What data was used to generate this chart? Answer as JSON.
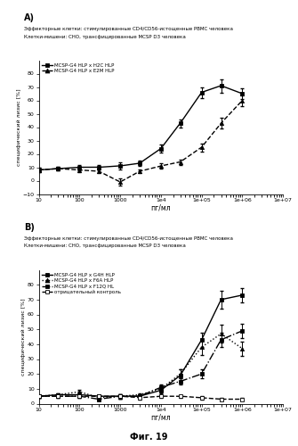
{
  "panel_A": {
    "title_line1": "Эффекторные клетки: стимулированные CD4/CD56-истощенные PBMC человека",
    "title_line2": "Клетки-мишени: СНО, трансфицированные MCSP D3 человека",
    "xlabel": "пг/мл",
    "ylabel": "специфический лизис [%]",
    "ylim": [
      -10,
      90
    ],
    "yticks": [
      -10,
      0,
      10,
      20,
      30,
      40,
      50,
      60,
      70,
      80
    ],
    "xlim_log": [
      10,
      10000000.0
    ],
    "series": [
      {
        "label": "MCSP-G4 HLP x H2C HLP",
        "linestyle": "-",
        "marker": "s",
        "color": "#000000",
        "filled": true,
        "x": [
          10,
          30,
          100,
          300,
          1000,
          3000,
          10000,
          30000,
          100000,
          300000,
          1000000
        ],
        "y": [
          8,
          9,
          10,
          10,
          11,
          13,
          24,
          43,
          66,
          71,
          65
        ],
        "yerr": [
          1.5,
          1.5,
          2,
          1.5,
          2.5,
          2,
          3,
          3,
          4,
          5,
          4
        ]
      },
      {
        "label": "MCSP-G4 HLP x E2M HLP",
        "linestyle": "--",
        "marker": "^",
        "color": "#000000",
        "filled": true,
        "x": [
          10,
          30,
          100,
          300,
          1000,
          3000,
          10000,
          30000,
          100000,
          300000,
          1000000
        ],
        "y": [
          8,
          9,
          8,
          7,
          -1,
          7,
          11,
          14,
          25,
          43,
          60
        ],
        "yerr": [
          1.5,
          1.5,
          1.5,
          1.5,
          2.5,
          1.5,
          2,
          2,
          3,
          4,
          4
        ]
      }
    ]
  },
  "panel_B": {
    "title_line1": "Эффекторные клетки: стимулированные CD4/CD56-истощенные PBMC человека",
    "title_line2": "Клетки-мишени: СНО, трансфицированные MCSP D3 человека",
    "xlabel": "пг/мл",
    "ylabel": "специфический лизис [%]",
    "ylim": [
      0,
      90
    ],
    "yticks": [
      0,
      10,
      20,
      30,
      40,
      50,
      60,
      70,
      80
    ],
    "xlim_log": [
      10,
      10000000.0
    ],
    "series": [
      {
        "label": "MCSP-G4 HLP x G4H HLP",
        "linestyle": "-",
        "marker": "s",
        "color": "#000000",
        "filled": true,
        "x": [
          10,
          30,
          100,
          300,
          1000,
          3000,
          10000,
          30000,
          100000,
          300000,
          1000000
        ],
        "y": [
          5,
          6,
          6,
          5,
          5,
          5,
          9,
          19,
          43,
          70,
          73
        ],
        "yerr": [
          1,
          1,
          1,
          1,
          1.5,
          1,
          2,
          4,
          5,
          6,
          5
        ]
      },
      {
        "label": "MCSP-G4 HLP x F6A HLP",
        "linestyle": ":",
        "marker": "^",
        "color": "#000000",
        "filled": true,
        "x": [
          10,
          30,
          100,
          300,
          1000,
          3000,
          10000,
          30000,
          100000,
          300000,
          1000000
        ],
        "y": [
          5,
          6,
          8,
          4,
          5,
          6,
          10,
          20,
          38,
          47,
          37
        ],
        "yerr": [
          1,
          1,
          1.5,
          1,
          1.5,
          1,
          2,
          3,
          5,
          6,
          5
        ]
      },
      {
        "label": "MCSP-G4 HLP x F12Q HL",
        "linestyle": "-.",
        "marker": "s",
        "color": "#000000",
        "filled": true,
        "x": [
          10,
          30,
          100,
          300,
          1000,
          3000,
          10000,
          30000,
          100000,
          300000,
          1000000
        ],
        "y": [
          5,
          5,
          5,
          3,
          5,
          5,
          11,
          15,
          20,
          43,
          49
        ],
        "yerr": [
          1,
          1,
          1,
          1,
          1.5,
          1,
          2,
          2,
          3,
          5,
          5
        ]
      },
      {
        "label": "отрицательный контроль",
        "linestyle": "--",
        "marker": "s",
        "color": "#000000",
        "filled": false,
        "x": [
          10,
          30,
          100,
          300,
          1000,
          3000,
          10000,
          30000,
          100000,
          300000,
          1000000
        ],
        "y": [
          5,
          5,
          5,
          5,
          5,
          4,
          5,
          5,
          4,
          3,
          3
        ],
        "yerr": [
          1,
          1,
          1,
          1,
          1,
          1,
          1,
          1,
          1,
          1,
          1
        ]
      }
    ]
  },
  "fig_label": "Фиг. 19",
  "panel_label_A": "А)",
  "panel_label_B": "В)"
}
